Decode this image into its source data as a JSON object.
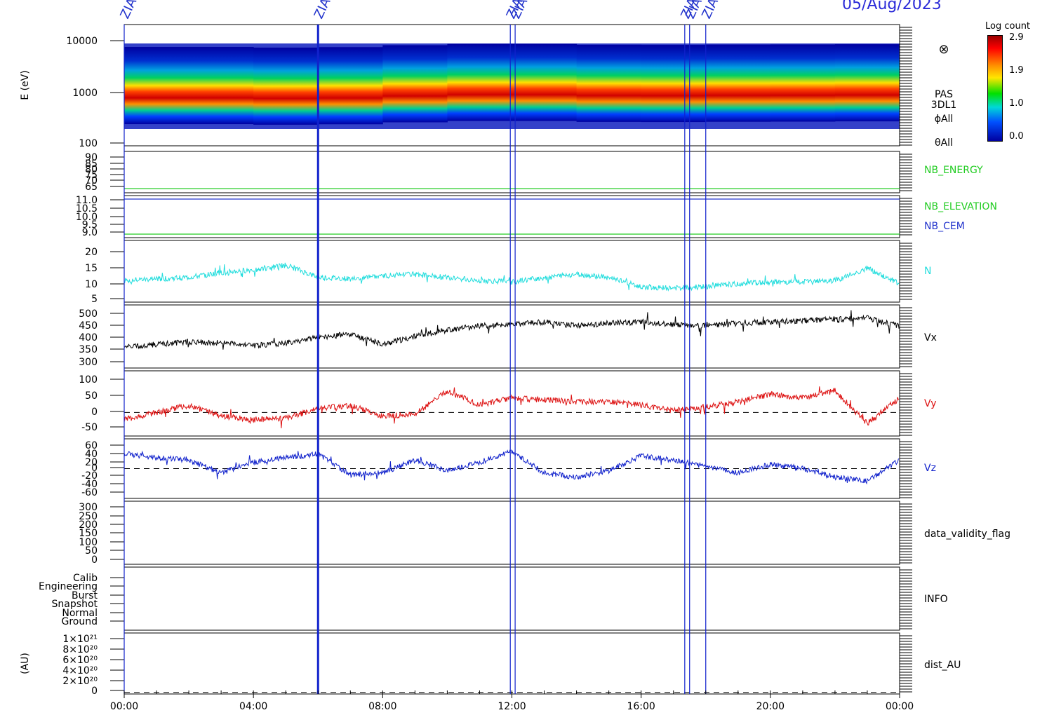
{
  "header": {
    "date": "05/Aug/2023"
  },
  "colorbar": {
    "title": "Log count",
    "ticks": [
      "2.9",
      "1.9",
      "1.0",
      "0.0"
    ]
  },
  "chart_data": {
    "type": "line",
    "x_axis": {
      "ticks": [
        "00:00",
        "04:00",
        "08:00",
        "12:00",
        "16:00",
        "20:00",
        "00:00"
      ],
      "range_hours": [
        0,
        24
      ]
    },
    "markers": {
      "label": "ZIAS",
      "times_hours": [
        0.0,
        6.0,
        11.95,
        12.1,
        17.35,
        17.5,
        18.0
      ]
    },
    "panels": [
      {
        "name": "spectrogram",
        "type": "heatmap",
        "ylabel": "E (eV)",
        "yscale": "log",
        "ylim": [
          100,
          10000
        ],
        "yticks": [
          "10000",
          "1000",
          "100"
        ],
        "right_labels": [
          "PAS",
          "3DL1",
          "ϕAll",
          "θAll"
        ],
        "symbol": "⊗",
        "peak_energy_eV_by_hour": [
          [
            0,
            900
          ],
          [
            4,
            920
          ],
          [
            6,
            860
          ],
          [
            8,
            950
          ],
          [
            10,
            1000
          ],
          [
            12,
            1050
          ],
          [
            14,
            1000
          ],
          [
            16,
            980
          ],
          [
            18,
            990
          ],
          [
            20,
            1000
          ],
          [
            22,
            1000
          ],
          [
            24,
            1020
          ]
        ]
      },
      {
        "name": "NB_ENERGY",
        "yticks": [
          "90",
          "85",
          "80",
          "75",
          "70",
          "65"
        ],
        "ylim": [
          62,
          92
        ],
        "right_labels": [
          "NB_ENERGY"
        ],
        "right_colors": [
          "#22cc22"
        ],
        "series": [
          {
            "name": "NB_ENERGY",
            "color": "#22cc22",
            "constant": 65
          }
        ]
      },
      {
        "name": "NB_ELEVATION",
        "yticks": [
          "11.0",
          "10.5",
          "10.0",
          "9.5",
          "9.0"
        ],
        "ylim": [
          8.8,
          11.2
        ],
        "right_labels": [
          "NB_ELEVATION",
          "NB_CEM"
        ],
        "right_colors": [
          "#22cc22",
          "#2233cc"
        ],
        "series": [
          {
            "name": "NB_CEM",
            "color": "#2233cc",
            "constant": 11.0
          },
          {
            "name": "NB_ELEVATION",
            "color": "#22cc22",
            "constant": 9.0
          }
        ]
      },
      {
        "name": "N",
        "yticks": [
          "20",
          "15",
          "10",
          "5"
        ],
        "ylim": [
          3,
          23
        ],
        "right_labels": [
          "N"
        ],
        "right_colors": [
          "#22dddd"
        ],
        "series": [
          {
            "name": "N",
            "color": "#22dddd",
            "x": [
              0,
              1,
              2,
              3,
              4,
              5,
              6,
              7,
              8,
              9,
              10,
              11,
              12,
              13,
              14,
              15,
              16,
              17,
              18,
              19,
              20,
              21,
              22,
              23,
              24
            ],
            "y": [
              10,
              10.5,
              11,
              12.5,
              13.5,
              15,
              11,
              10.5,
              11.5,
              12,
              11,
              10,
              9.5,
              11,
              12,
              11,
              8,
              7.5,
              8,
              9,
              9.5,
              9.5,
              10,
              14,
              9
            ]
          }
        ]
      },
      {
        "name": "Vx",
        "yticks": [
          "500",
          "450",
          "400",
          "350",
          "300"
        ],
        "ylim": [
          280,
          520
        ],
        "right_labels": [
          "Vx"
        ],
        "right_colors": [
          "#000000"
        ],
        "series": [
          {
            "name": "Vx",
            "color": "#000000",
            "x": [
              0,
              1,
              2,
              3,
              4,
              5,
              6,
              7,
              8,
              9,
              10,
              11,
              12,
              13,
              14,
              15,
              16,
              17,
              18,
              19,
              20,
              21,
              22,
              23,
              24
            ],
            "y": [
              360,
              370,
              380,
              375,
              365,
              375,
              395,
              410,
              370,
              400,
              425,
              440,
              445,
              455,
              440,
              450,
              455,
              445,
              440,
              450,
              455,
              460,
              465,
              470,
              440
            ]
          }
        ]
      },
      {
        "name": "Vy",
        "yticks": [
          "100",
          "50",
          "0",
          "-50"
        ],
        "ylim": [
          -65,
          115
        ],
        "zero_line": 0,
        "right_labels": [
          "Vy"
        ],
        "right_colors": [
          "#dd1111"
        ],
        "series": [
          {
            "name": "Vy",
            "color": "#dd1111",
            "x": [
              0,
              1,
              2,
              3,
              4,
              5,
              6,
              7,
              8,
              9,
              10,
              11,
              12,
              13,
              14,
              15,
              16,
              17,
              18,
              19,
              20,
              21,
              22,
              23,
              24
            ],
            "y": [
              -20,
              0,
              20,
              -10,
              -20,
              -15,
              10,
              20,
              -10,
              -5,
              60,
              20,
              40,
              35,
              30,
              30,
              20,
              5,
              15,
              30,
              50,
              40,
              60,
              -30,
              40
            ]
          }
        ]
      },
      {
        "name": "Vz",
        "yticks": [
          "60",
          "40",
          "20",
          "0",
          "-20",
          "-40",
          "-60"
        ],
        "ylim": [
          -70,
          70
        ],
        "zero_line": 0,
        "right_labels": [
          "Vz"
        ],
        "right_colors": [
          "#1122cc"
        ],
        "series": [
          {
            "name": "Vz",
            "color": "#1122cc",
            "x": [
              0,
              1,
              2,
              3,
              4,
              5,
              6,
              7,
              8,
              9,
              10,
              11,
              12,
              13,
              14,
              15,
              16,
              17,
              18,
              19,
              20,
              21,
              22,
              23,
              24
            ],
            "y": [
              35,
              25,
              20,
              -10,
              15,
              25,
              35,
              -15,
              -10,
              20,
              -5,
              15,
              40,
              -10,
              -20,
              -5,
              30,
              20,
              5,
              -10,
              10,
              0,
              -20,
              -30,
              20
            ]
          }
        ]
      },
      {
        "name": "data_validity_flag",
        "yticks": [
          "300",
          "250",
          "200",
          "150",
          "100",
          "50",
          "0"
        ],
        "ylim": [
          -10,
          310
        ],
        "right_labels": [
          "data_validity_flag"
        ],
        "right_colors": [
          "#000000"
        ]
      },
      {
        "name": "INFO",
        "yticks": [
          "Calib",
          "Engineering",
          "Burst",
          "Snapshot",
          "Normal",
          "Ground"
        ],
        "right_labels": [
          "INFO"
        ],
        "right_colors": [
          "#000000"
        ]
      },
      {
        "name": "dist_AU",
        "ylabel": "(AU)",
        "yticks": [
          "1×10²¹",
          "8×10²⁰",
          "6×10²⁰",
          "4×10²⁰",
          "2×10²⁰",
          "0"
        ],
        "ylim": [
          -0.3,
          10.8
        ],
        "zero_line": 0,
        "right_labels": [
          "dist_AU"
        ],
        "right_colors": [
          "#000000"
        ]
      }
    ]
  }
}
